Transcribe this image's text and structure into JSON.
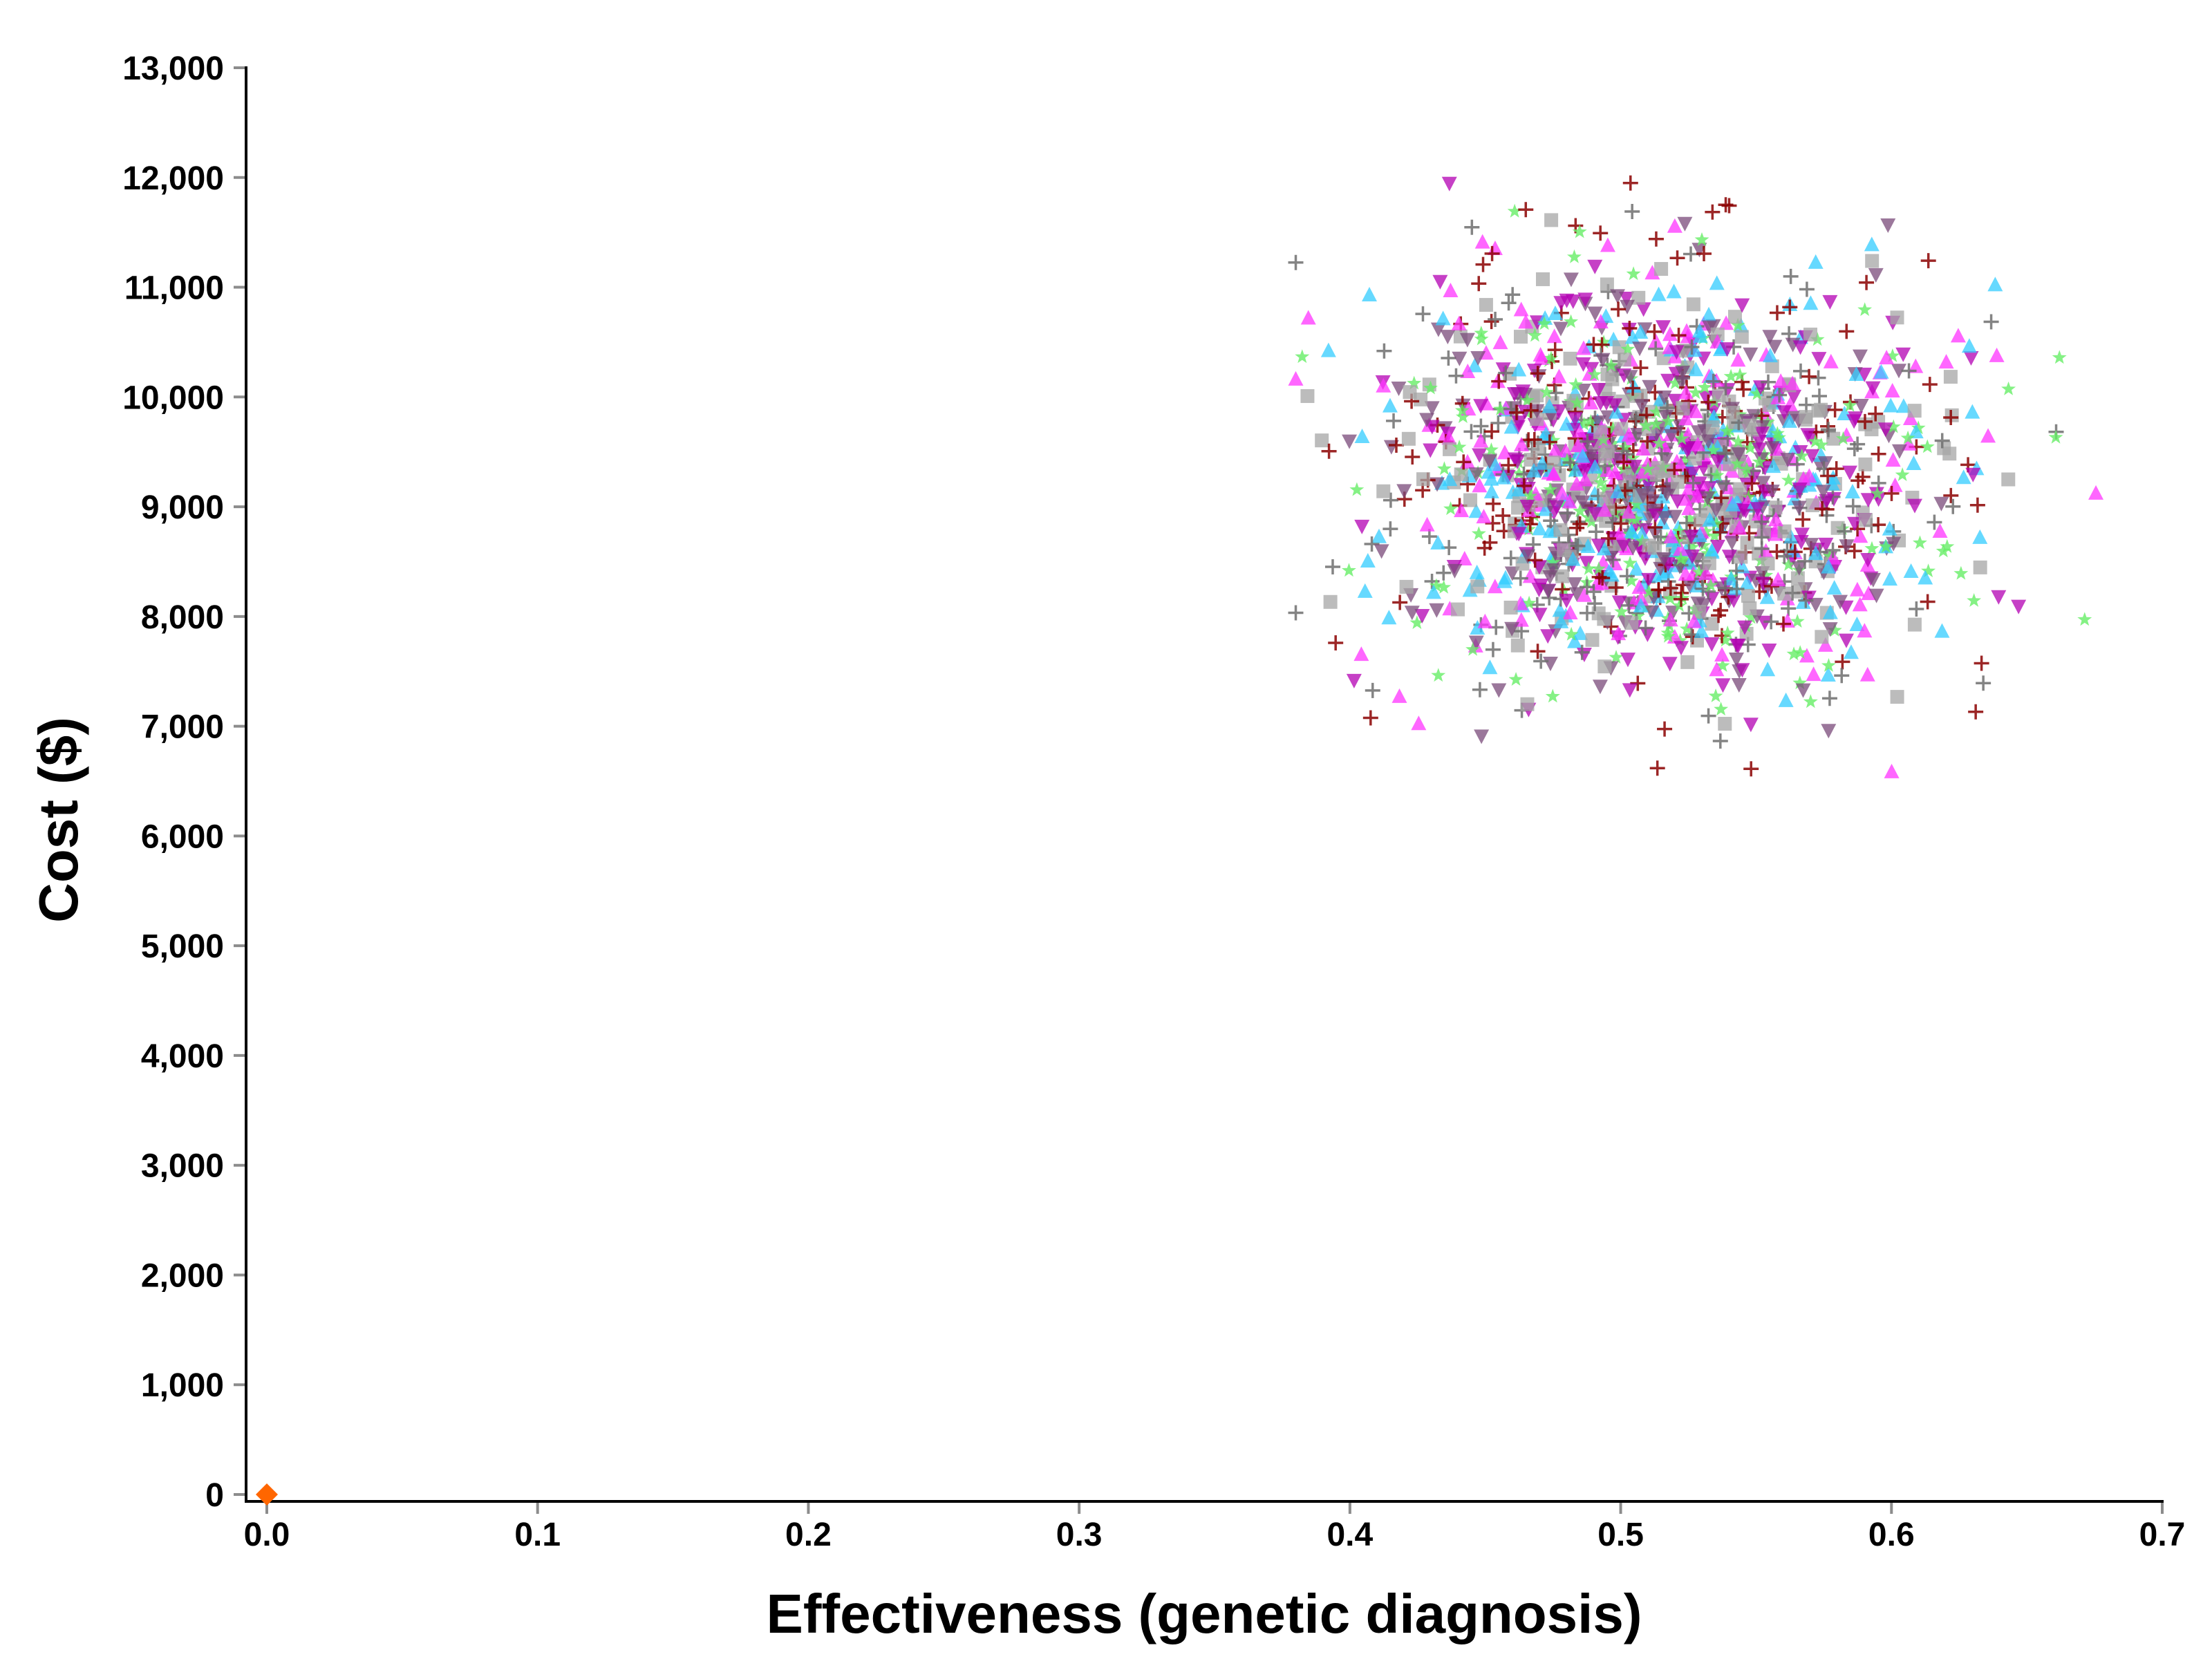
{
  "chart_data": {
    "type": "scatter",
    "xlabel": "Effectiveness (genetic diagnosis)",
    "ylabel": "Cost ($)",
    "xlim": [
      0.0,
      0.7
    ],
    "ylim": [
      0,
      13000
    ],
    "x_ticks": [
      0.0,
      0.1,
      0.2,
      0.3,
      0.4,
      0.5,
      0.6,
      0.7
    ],
    "x_tick_labels": [
      "0.0",
      "0.1",
      "0.2",
      "0.3",
      "0.4",
      "0.5",
      "0.6",
      "0.7"
    ],
    "y_ticks": [
      0,
      1000,
      2000,
      3000,
      4000,
      5000,
      6000,
      7000,
      8000,
      9000,
      10000,
      11000,
      12000,
      13000
    ],
    "y_tick_labels": [
      "0",
      "1,000",
      "2,000",
      "3,000",
      "4,000",
      "5,000",
      "6,000",
      "7,000",
      "8,000",
      "9,000",
      "10,000",
      "11,000",
      "12,000",
      "13,000"
    ],
    "grid": false,
    "legend": "none",
    "reference_point": {
      "x": 0.0,
      "y": 0,
      "marker": "diamond",
      "color": "#ff6600"
    },
    "cloud": {
      "x_mean": 0.515,
      "x_sd": 0.05,
      "x_range": [
        0.38,
        0.68
      ],
      "y_mean": 9200,
      "y_sd": 900,
      "y_range": [
        6300,
        11950
      ],
      "points_per_series": 220
    },
    "series": [
      {
        "marker": "square",
        "color": "#a6a6a6"
      },
      {
        "marker": "star",
        "color": "#66ee66"
      },
      {
        "marker": "triangle-up",
        "color": "#33ccff"
      },
      {
        "marker": "triangle-up",
        "color": "#ff33ff"
      },
      {
        "marker": "triangle-down",
        "color": "#b300b3"
      },
      {
        "marker": "triangle-down",
        "color": "#7a4a7a"
      },
      {
        "marker": "plus",
        "color": "#6e6e6e"
      },
      {
        "marker": "plus",
        "color": "#8b0000"
      }
    ]
  }
}
